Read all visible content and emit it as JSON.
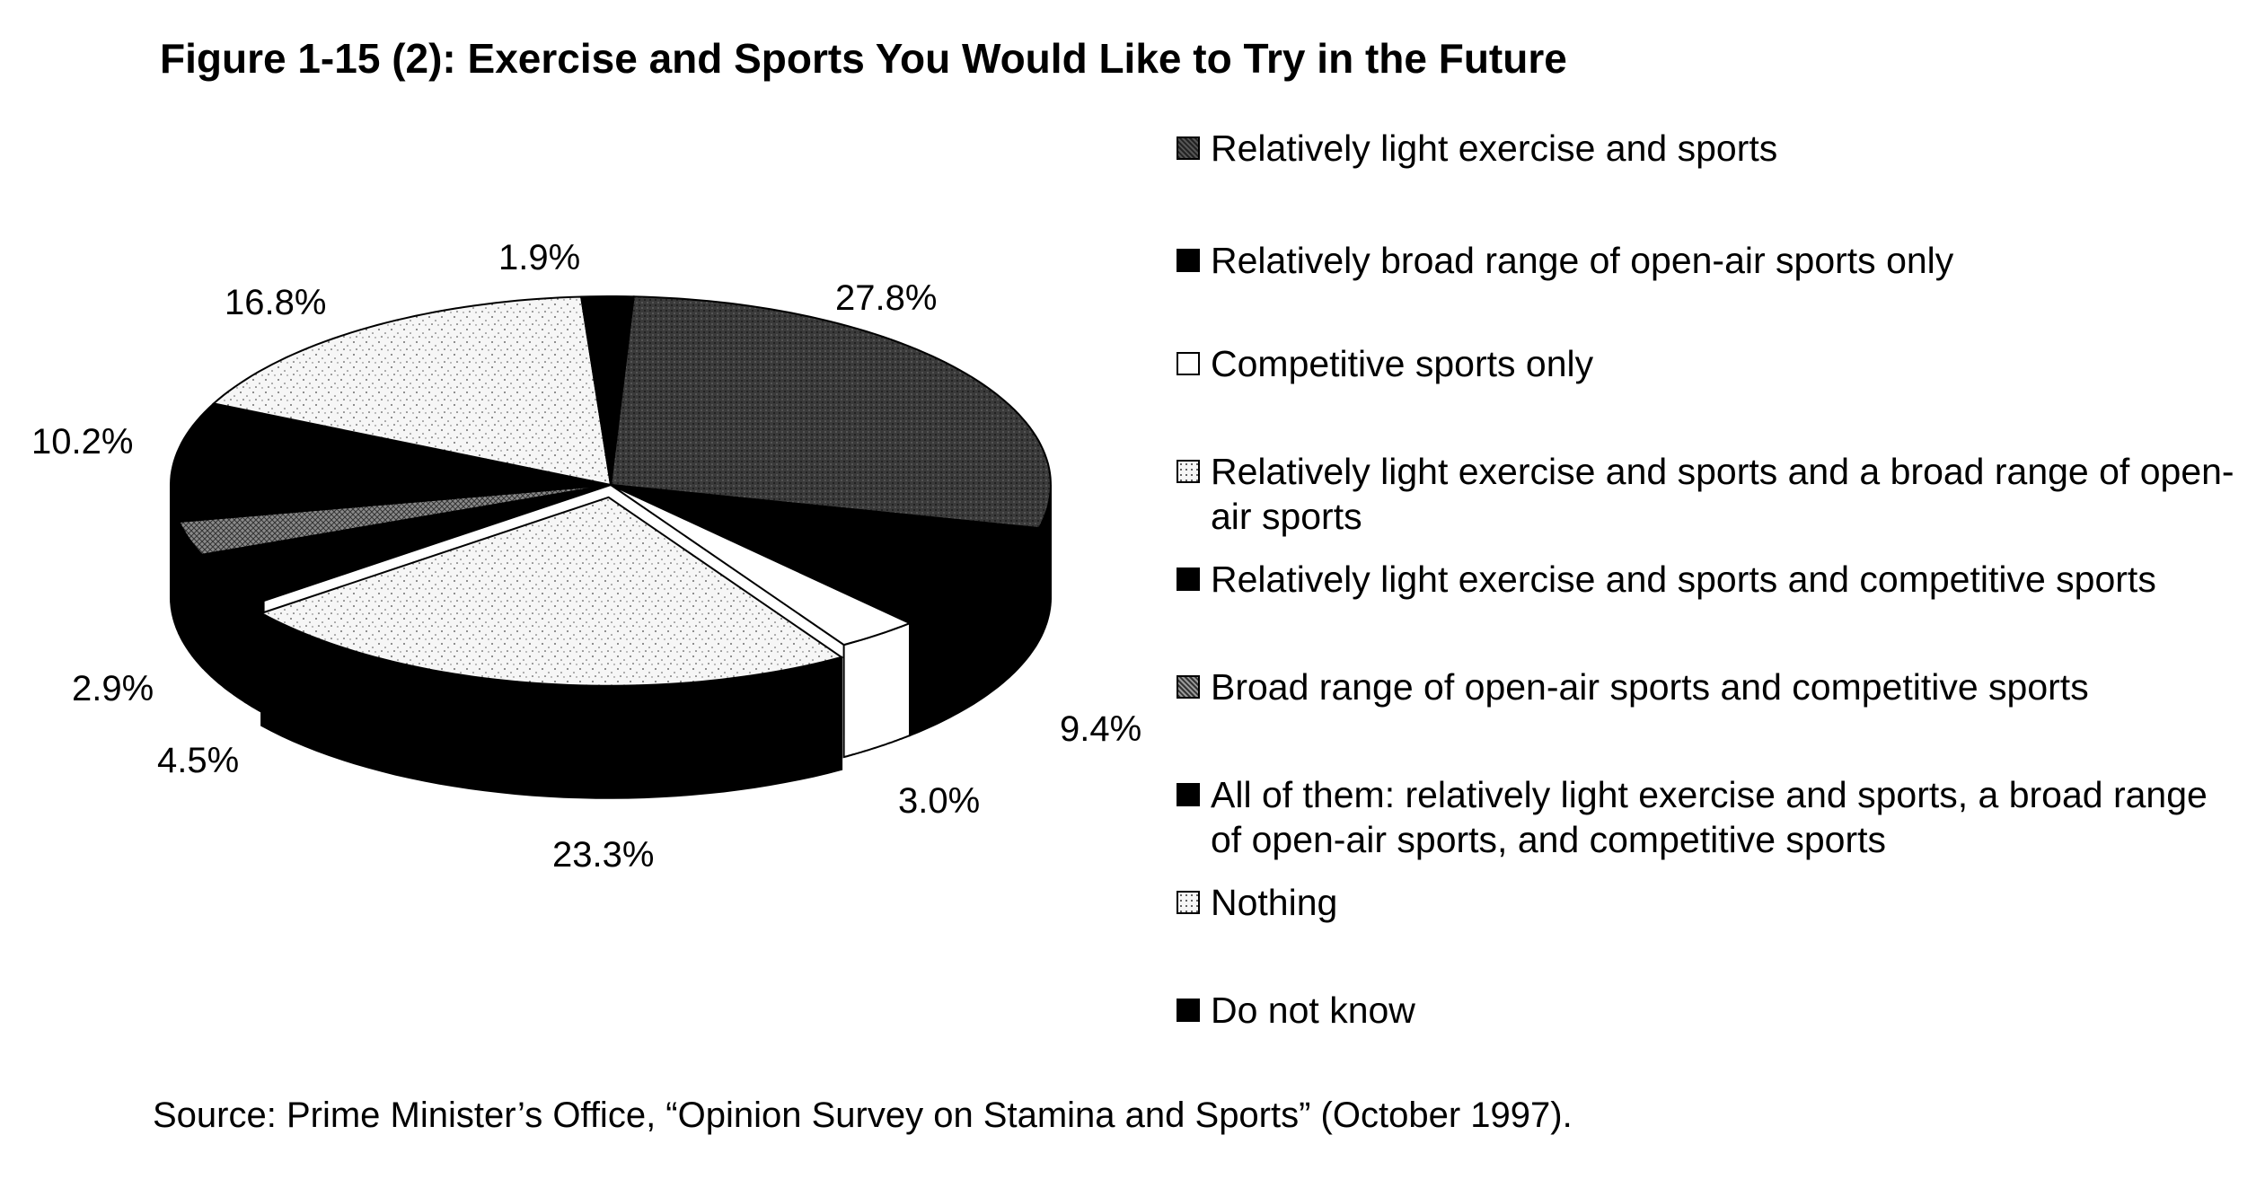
{
  "chart_data": {
    "type": "pie",
    "title": "Figure 1-15 (2): Exercise and Sports You Would Like to Try in the Future",
    "slices": [
      {
        "label": "Relatively light exercise and sports",
        "value": 27.8,
        "value_label": "27.8%",
        "color": "#3a3a3a",
        "pattern": "dark-texture"
      },
      {
        "label": "Relatively broad range of open-air sports only",
        "value": 9.4,
        "value_label": "9.4%",
        "color": "#000000",
        "pattern": "solid"
      },
      {
        "label": "Competitive sports only",
        "value": 3.0,
        "value_label": "3.0%",
        "color": "#ffffff",
        "pattern": "solid"
      },
      {
        "label": "Relatively light exercise and sports and a broad range of open-air sports",
        "value": 23.3,
        "value_label": "23.3%",
        "color": "#f4f4f4",
        "pattern": "speckle"
      },
      {
        "label": "Relatively light exercise and sports and competitive sports",
        "value": 4.5,
        "value_label": "4.5%",
        "color": "#000000",
        "pattern": "solid"
      },
      {
        "label": "Broad range of open-air sports and competitive sports",
        "value": 2.9,
        "value_label": "2.9%",
        "color": "#6e6e6e",
        "pattern": "grid"
      },
      {
        "label": "All of them: relatively light exercise and sports, a broad range of open-air sports, and competitive sports",
        "value": 10.2,
        "value_label": "10.2%",
        "color": "#000000",
        "pattern": "solid"
      },
      {
        "label": "Nothing",
        "value": 16.8,
        "value_label": "16.8%",
        "color": "#f4f4f4",
        "pattern": "speckle"
      },
      {
        "label": "Do not know",
        "value": 1.9,
        "value_label": "1.9%",
        "color": "#000000",
        "pattern": "solid"
      }
    ],
    "legend_position": "right",
    "three_d": true
  },
  "legend": {
    "items": [
      {
        "label": "Relatively light exercise and sports",
        "color": "#3a3a3a"
      },
      {
        "label": "Relatively broad range of open-air sports only",
        "color": "#000000"
      },
      {
        "label": "Competitive sports only",
        "color": "#ffffff"
      },
      {
        "label": "Relatively light exercise and sports and a broad range of open-air sports",
        "color": "#f4f4f4"
      },
      {
        "label": "Relatively light exercise and sports and competitive sports",
        "color": "#000000"
      },
      {
        "label": "Broad range of open-air sports and competitive sports",
        "color": "#6e6e6e"
      },
      {
        "label": "All of them: relatively light exercise and sports, a broad range of open-air sports, and competitive sports",
        "color": "#000000"
      },
      {
        "label": "Nothing",
        "color": "#f4f4f4"
      },
      {
        "label": "Do not know",
        "color": "#000000"
      }
    ]
  },
  "source_note": "Source: Prime Minister’s Office, “Opinion Survey on Stamina and Sports” (October 1997)."
}
